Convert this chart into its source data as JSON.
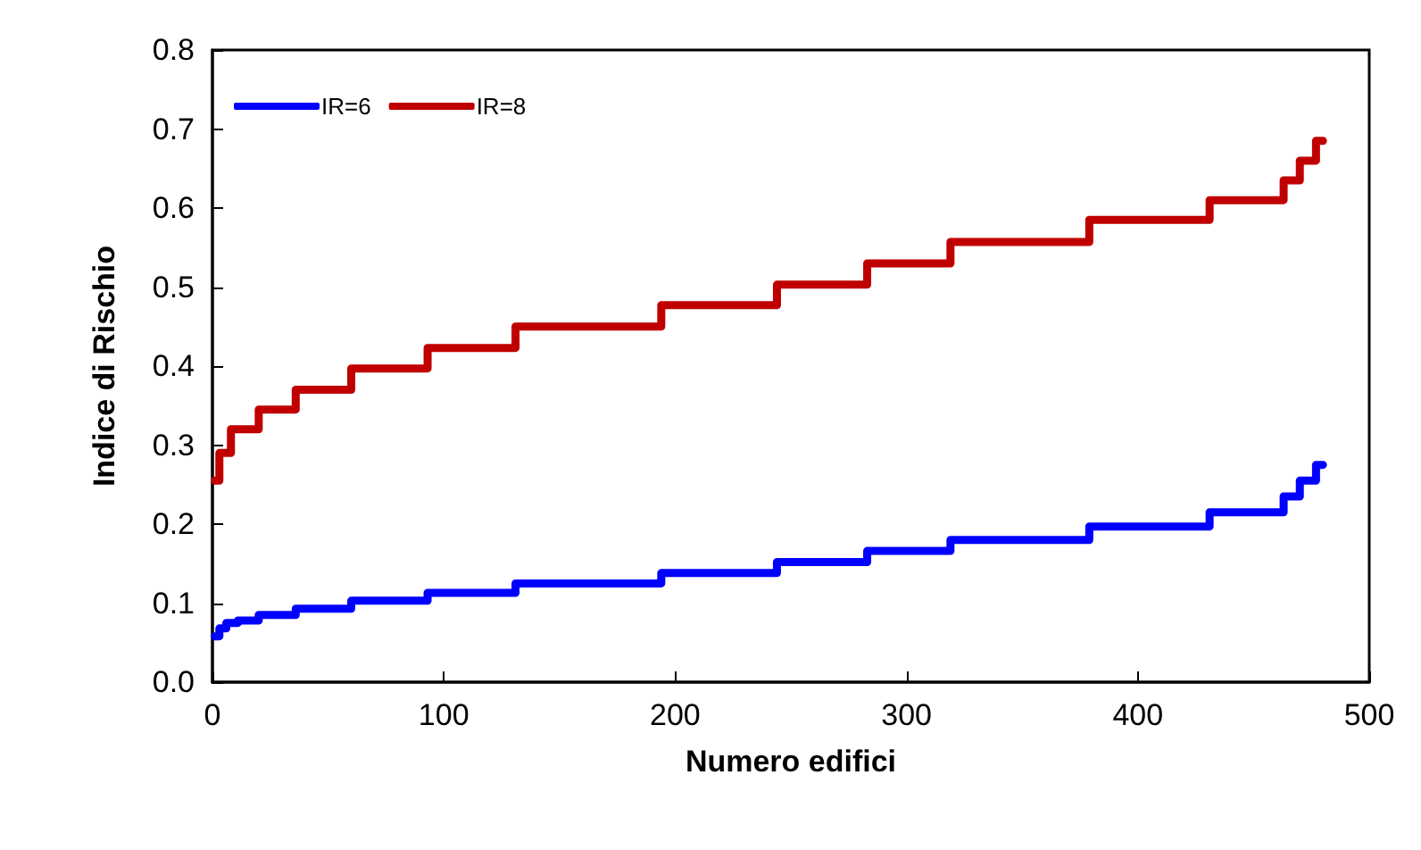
{
  "chart_data": {
    "type": "step",
    "xlabel": "Numero edifici",
    "ylabel": "Indice di Rischio",
    "xlim": [
      0,
      500
    ],
    "xticks": [
      0,
      100,
      200,
      300,
      400,
      500
    ],
    "ylim": [
      0,
      0.8
    ],
    "yticks": [
      {
        "value": 0,
        "label": "0.0"
      },
      0.1,
      0.2,
      0.3,
      0.4,
      0.5,
      0.6,
      0.7,
      0.8
    ],
    "grid": false,
    "legend": "top left",
    "marker": "none",
    "line_style": "solid",
    "series": [
      {
        "name": "IR=6",
        "color": "#0000ff",
        "x": [
          1,
          3,
          6,
          11,
          20,
          36,
          60,
          93,
          131,
          194,
          244,
          283,
          319,
          379,
          431,
          463,
          470,
          477,
          480
        ],
        "values": [
          0.058,
          0.068,
          0.075,
          0.078,
          0.085,
          0.093,
          0.103,
          0.113,
          0.125,
          0.138,
          0.152,
          0.166,
          0.18,
          0.197,
          0.215,
          0.235,
          0.255,
          0.275,
          0.275
        ]
      },
      {
        "name": "IR=8",
        "color": "#c00000",
        "x": [
          1,
          3,
          8,
          20,
          36,
          60,
          93,
          131,
          194,
          244,
          283,
          319,
          379,
          431,
          463,
          470,
          477,
          480
        ],
        "values": [
          0.255,
          0.29,
          0.32,
          0.345,
          0.37,
          0.397,
          0.423,
          0.45,
          0.477,
          0.503,
          0.53,
          0.557,
          0.585,
          0.61,
          0.635,
          0.66,
          0.685,
          0.685
        ]
      }
    ]
  }
}
